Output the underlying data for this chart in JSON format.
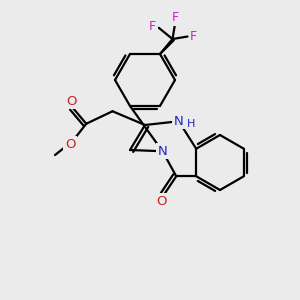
{
  "bg_color": "#ebebeb",
  "bond_color": "#000000",
  "n_color": "#2222cc",
  "o_color": "#cc2222",
  "f_color": "#cc22cc",
  "lw": 1.6,
  "figsize": [
    3.0,
    3.0
  ],
  "dpi": 100,
  "xlim": [
    -1,
    11
  ],
  "ylim": [
    -1,
    11
  ]
}
